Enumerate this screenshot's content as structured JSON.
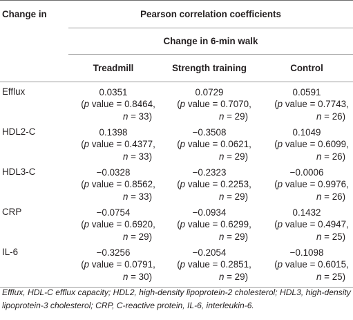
{
  "table": {
    "row_header": "Change in",
    "group_header": "Pearson correlation coefficients",
    "subgroup_header": "Change in 6-min walk",
    "columns": [
      "Treadmill",
      "Strength training",
      "Control"
    ],
    "rows": [
      {
        "label": "Efflux",
        "cells": [
          {
            "coef": "0.0351",
            "p": "0.8464",
            "n": "33"
          },
          {
            "coef": "0.0729",
            "p": "0.7070",
            "n": "29"
          },
          {
            "coef": "0.0591",
            "p": "0.7743",
            "n": "26"
          }
        ]
      },
      {
        "label": "HDL2-C",
        "cells": [
          {
            "coef": "0.1398",
            "p": "0.4377",
            "n": "33"
          },
          {
            "coef": "−0.3508",
            "p": "0.0621",
            "n": "29"
          },
          {
            "coef": "0.1049",
            "p": "0.6099",
            "n": "26"
          }
        ]
      },
      {
        "label": "HDL3-C",
        "cells": [
          {
            "coef": "−0.0328",
            "p": "0.8562",
            "n": "33"
          },
          {
            "coef": "−0.2323",
            "p": "0.2253",
            "n": "29"
          },
          {
            "coef": "−0.0006",
            "p": "0.9976",
            "n": "26"
          }
        ]
      },
      {
        "label": "CRP",
        "cells": [
          {
            "coef": "−0.0754",
            "p": "0.6920",
            "n": "29"
          },
          {
            "coef": "−0.0934",
            "p": "0.6299",
            "n": "29"
          },
          {
            "coef": "0.1432",
            "p": "0.4947",
            "n": "25"
          }
        ]
      },
      {
        "label": "IL-6",
        "cells": [
          {
            "coef": "−0.3256",
            "p": "0.0791",
            "n": "30"
          },
          {
            "coef": "−0.2054",
            "p": "0.2851",
            "n": "29"
          },
          {
            "coef": "−0.1098",
            "p": "0.6015",
            "n": "25"
          }
        ]
      }
    ],
    "p_symbol": "p",
    "p_word": " value = ",
    "n_symbol": "n",
    "n_eq": " = "
  },
  "footnote": "Efflux, HDL-C efflux capacity; HDL2, high-density lipoprotein-2 cholesterol; HDL3, high-density lipoprotein-3 cholesterol; CRP, C-reactive protein, IL-6, interleukin-6."
}
